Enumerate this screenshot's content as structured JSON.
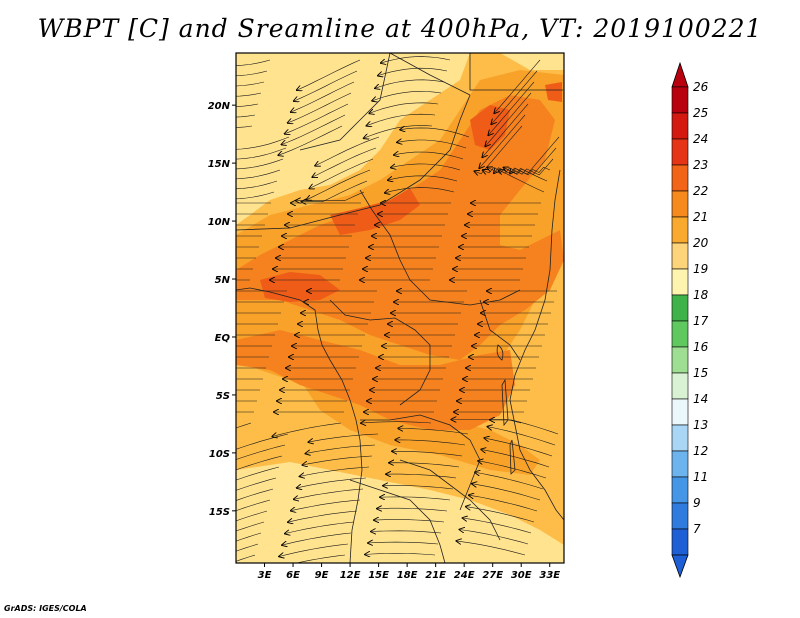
{
  "title": "WBPT [C] and Sreamline at 400hPa, VT: 2019100221",
  "credit": "GrADS: IGES/COLA",
  "map": {
    "lon_labels": [
      "3E",
      "6E",
      "9E",
      "12E",
      "15E",
      "18E",
      "21E",
      "24E",
      "27E",
      "30E",
      "33E"
    ],
    "lon_values": [
      3,
      6,
      9,
      12,
      15,
      18,
      21,
      24,
      27,
      30,
      33
    ],
    "lat_labels": [
      "20N",
      "15N",
      "10N",
      "5N",
      "EQ",
      "5S",
      "10S",
      "15S"
    ],
    "lat_values": [
      20,
      15,
      10,
      5,
      0,
      -5,
      -10,
      -15
    ],
    "lon_range": [
      0,
      34.5
    ],
    "lat_range": [
      -19.5,
      24.5
    ],
    "fill_colors": {
      "19-20": "#FFE38F",
      "20-21": "#FDBD48",
      "21-22": "#F9A22A",
      "22-23": "#F5821E",
      "23-24": "#EE5C17"
    }
  },
  "colorbar": {
    "levels": [
      "26",
      "25",
      "24",
      "23",
      "22",
      "21",
      "20",
      "19",
      "18",
      "17",
      "16",
      "15",
      "14",
      "13",
      "12",
      "11",
      "9",
      "7"
    ],
    "colors": [
      "#B8000F",
      "#D41A10",
      "#E63416",
      "#F26418",
      "#F68A1E",
      "#F9A92E",
      "#FDD47A",
      "#FFF3B0",
      "#3FB349",
      "#5FC960",
      "#9EDE93",
      "#D9F2D3",
      "#ECF7FB",
      "#A9D6F5",
      "#6DB4EF",
      "#4596E6",
      "#2F7BDE",
      "#1E5FD6"
    ],
    "top_arrow_color": "#B8000F",
    "bottom_arrow_color": "#1E5FD6"
  }
}
